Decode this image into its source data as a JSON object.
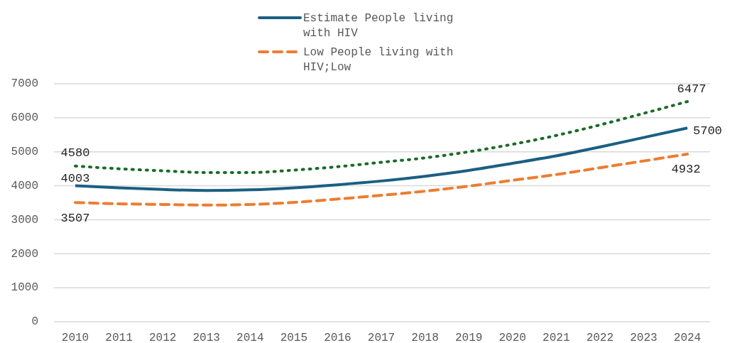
{
  "chart_data": {
    "type": "line",
    "categories": [
      "2010",
      "2011",
      "2012",
      "2013",
      "2014",
      "2015",
      "2016",
      "2017",
      "2018",
      "2019",
      "2020",
      "2021",
      "2022",
      "2023",
      "2024"
    ],
    "series": [
      {
        "name": "Estimate People living with HIV",
        "color": "#1a5f82",
        "line_style": "solid",
        "values": [
          4003,
          3940,
          3890,
          3860,
          3880,
          3940,
          4030,
          4140,
          4280,
          4450,
          4660,
          4880,
          5140,
          5420,
          5700
        ],
        "value_labels": [
          "4003",
          null,
          null,
          null,
          null,
          null,
          null,
          null,
          null,
          null,
          null,
          null,
          null,
          null,
          "5700"
        ]
      },
      {
        "name": "Low People living with HIV;Low",
        "color": "#ed7d31",
        "line_style": "dashed",
        "values": [
          3507,
          3470,
          3450,
          3430,
          3450,
          3510,
          3610,
          3720,
          3840,
          3990,
          4160,
          4330,
          4530,
          4730,
          4932
        ],
        "value_labels": [
          "3507",
          null,
          null,
          null,
          null,
          null,
          null,
          null,
          null,
          null,
          null,
          null,
          null,
          null,
          "4932"
        ]
      },
      {
        "color": "#1a6b28",
        "line_style": "dotted",
        "values": [
          4580,
          4500,
          4440,
          4390,
          4390,
          4460,
          4560,
          4690,
          4820,
          5000,
          5220,
          5480,
          5790,
          6130,
          6477
        ],
        "value_labels": [
          "4580",
          null,
          null,
          null,
          null,
          null,
          null,
          null,
          null,
          null,
          null,
          null,
          null,
          null,
          "6477"
        ]
      }
    ],
    "ylim": [
      0,
      7000
    ],
    "yticks": [
      0,
      1000,
      2000,
      3000,
      4000,
      5000,
      6000,
      7000
    ],
    "grid": "y",
    "legend": "top",
    "marker": "none"
  }
}
